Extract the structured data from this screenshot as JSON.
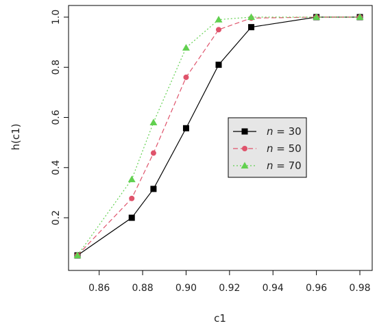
{
  "chart_data": {
    "type": "line",
    "xlabel": "c1",
    "ylabel": "h(c1)",
    "xlim": [
      0.84,
      0.985
    ],
    "ylim": [
      0.03,
      1.02
    ],
    "x_ticks": [
      0.86,
      0.88,
      0.9,
      0.92,
      0.94,
      0.96,
      0.98
    ],
    "x_tick_labels": [
      "0.86",
      "0.88",
      "0.90",
      "0.92",
      "0.94",
      "0.96",
      "0.98"
    ],
    "y_ticks": [
      0.2,
      0.4,
      0.6,
      0.8,
      1.0
    ],
    "y_tick_labels": [
      "0.2",
      "0.4",
      "0.6",
      "0.8",
      "1.0"
    ],
    "grid": false,
    "legend_position": "center-right",
    "series": [
      {
        "name": "n = 30",
        "legend_var": "n",
        "legend_value": "= 30",
        "color": "#000000",
        "line_style": "solid",
        "marker": "square",
        "points": [
          [
            0.85,
            0.05
          ],
          [
            0.875,
            0.2
          ],
          [
            0.885,
            0.315
          ],
          [
            0.9,
            0.557
          ],
          [
            0.915,
            0.81
          ],
          [
            0.93,
            0.96
          ],
          [
            0.96,
            1.0
          ],
          [
            0.98,
            1.0
          ]
        ]
      },
      {
        "name": "n = 50",
        "legend_var": "n",
        "legend_value": "= 50",
        "color": "#df536b",
        "line_style": "dashed",
        "marker": "circle",
        "points": [
          [
            0.85,
            0.05
          ],
          [
            0.875,
            0.277
          ],
          [
            0.885,
            0.458
          ],
          [
            0.9,
            0.76
          ],
          [
            0.915,
            0.95
          ],
          [
            0.93,
            0.996
          ],
          [
            0.96,
            1.0
          ],
          [
            0.98,
            1.0
          ]
        ]
      },
      {
        "name": "n = 70",
        "legend_var": "n",
        "legend_value": "= 70",
        "color": "#61d04f",
        "line_style": "dotted",
        "marker": "triangle",
        "points": [
          [
            0.85,
            0.05
          ],
          [
            0.875,
            0.353
          ],
          [
            0.885,
            0.58
          ],
          [
            0.9,
            0.878
          ],
          [
            0.915,
            0.99
          ],
          [
            0.93,
            1.0
          ],
          [
            0.96,
            1.0
          ],
          [
            0.98,
            1.0
          ]
        ]
      }
    ]
  }
}
